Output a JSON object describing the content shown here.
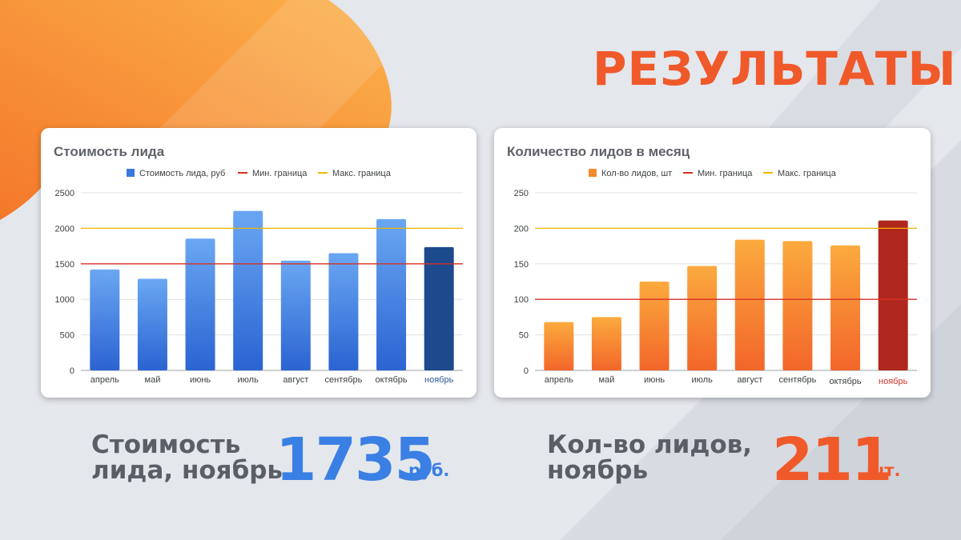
{
  "page": {
    "title": "РЕЗУЛЬТАТЫ"
  },
  "colors": {
    "accent_orange": "#f0592a",
    "blue": "#3a78e0",
    "blue_highlight": "#1c4a8c",
    "orange": "#f58a2a",
    "red_highlight": "#b0271e",
    "min_line": "#d93025",
    "max_line": "#f2b600"
  },
  "chart_data": [
    {
      "type": "bar",
      "title": "Стоимость лида",
      "categories": [
        "апрель",
        "май",
        "июнь",
        "июль",
        "август",
        "сентябрь",
        "октябрь",
        "ноябрь"
      ],
      "series": [
        {
          "name": "Стоимость лида, руб",
          "values": [
            1420,
            1290,
            1855,
            2245,
            1545,
            1650,
            2130,
            1735
          ]
        },
        {
          "name": "Мин. граница",
          "type": "line",
          "value": 1500
        },
        {
          "name": "Макс. граница",
          "type": "line",
          "value": 2000
        }
      ],
      "highlight_category": "ноябрь",
      "yticks": [
        "0",
        "500",
        "1000",
        "1500",
        "2000",
        "2500"
      ],
      "ylim": [
        0,
        2500
      ],
      "grid": true,
      "legend": "top-center"
    },
    {
      "type": "bar",
      "title": "Количество  лидов в месяц",
      "categories": [
        "апрель",
        "май",
        "июнь",
        "июль",
        "август",
        "сентябрь",
        "октябрь",
        "ноябрь"
      ],
      "series": [
        {
          "name": "Кол-во лидов, шт",
          "values": [
            68,
            75,
            125,
            147,
            184,
            182,
            176,
            211
          ]
        },
        {
          "name": "Мин. граница",
          "type": "line",
          "value": 100
        },
        {
          "name": "Макс. граница",
          "type": "line",
          "value": 200
        }
      ],
      "highlight_category": "ноябрь",
      "yticks": [
        "0",
        "50",
        "100",
        "150",
        "200",
        "250"
      ],
      "ylim": [
        0,
        250
      ],
      "grid": true,
      "legend": "top-center"
    }
  ],
  "stats": {
    "cost": {
      "label_line1": "Стоимость",
      "label_line2": "лида, ноябрь",
      "value": "1735",
      "unit": "руб."
    },
    "leads": {
      "label_line1": "Кол-во лидов,",
      "label_line2": "ноябрь",
      "value": "211",
      "unit": "шт."
    }
  }
}
